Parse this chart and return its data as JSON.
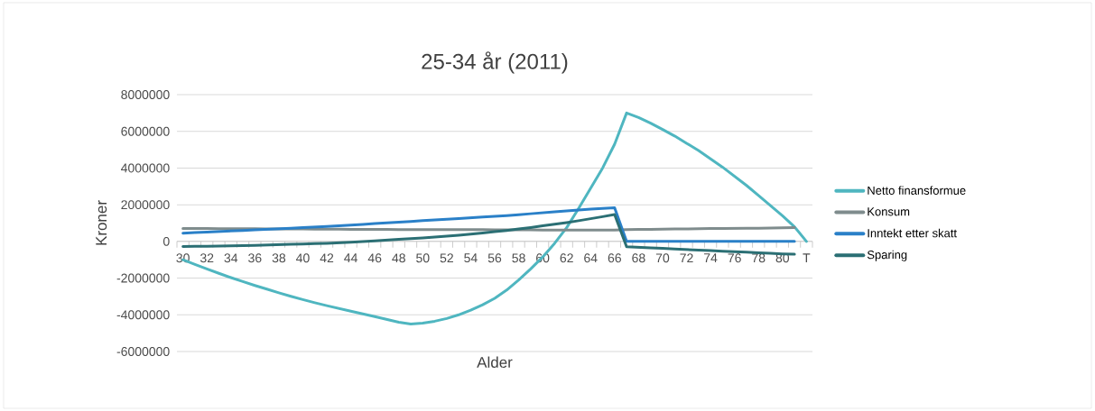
{
  "chart_data": {
    "type": "line",
    "title": "25-34 år (2011)",
    "xlabel": "Alder",
    "ylabel": "Kroner",
    "categories": [
      "30",
      null,
      "32",
      null,
      "34",
      null,
      "36",
      null,
      "38",
      null,
      "40",
      null,
      "42",
      null,
      "44",
      null,
      "46",
      null,
      "48",
      null,
      "50",
      null,
      "52",
      null,
      "54",
      null,
      "56",
      null,
      "58",
      null,
      "60",
      null,
      "62",
      null,
      "64",
      null,
      "66",
      null,
      "68",
      null,
      "70",
      null,
      "72",
      null,
      "74",
      null,
      "76",
      null,
      "78",
      null,
      "80",
      null,
      "T"
    ],
    "series": [
      {
        "name": "Netto finansformue",
        "color": "#4fb6c0",
        "values": [
          -1000000,
          -1250000,
          -1500000,
          -1740000,
          -1970000,
          -2190000,
          -2400000,
          -2600000,
          -2800000,
          -2990000,
          -3170000,
          -3340000,
          -3500000,
          -3650000,
          -3800000,
          -3950000,
          -4100000,
          -4250000,
          -4400000,
          -4500000,
          -4450000,
          -4350000,
          -4200000,
          -4000000,
          -3750000,
          -3450000,
          -3100000,
          -2650000,
          -2100000,
          -1500000,
          -850000,
          -100000,
          750000,
          1800000,
          2900000,
          4000000,
          5300000,
          7000000,
          6750000,
          6450000,
          6100000,
          5750000,
          5350000,
          4950000,
          4500000,
          4050000,
          3550000,
          3050000,
          2500000,
          1950000,
          1400000,
          800000,
          0
        ]
      },
      {
        "name": "Konsum",
        "color": "#7f8c8d",
        "values": [
          700000,
          700000,
          700000,
          690000,
          690000,
          690000,
          690000,
          680000,
          680000,
          680000,
          680000,
          670000,
          670000,
          670000,
          660000,
          660000,
          660000,
          660000,
          650000,
          650000,
          650000,
          650000,
          640000,
          640000,
          640000,
          640000,
          630000,
          630000,
          630000,
          630000,
          620000,
          620000,
          620000,
          620000,
          620000,
          620000,
          620000,
          650000,
          660000,
          660000,
          670000,
          680000,
          680000,
          690000,
          700000,
          700000,
          710000,
          720000,
          720000,
          730000,
          740000,
          750000,
          null
        ]
      },
      {
        "name": "Inntekt etter skatt",
        "color": "#2a80c8",
        "values": [
          450000,
          480000,
          510000,
          540000,
          570000,
          600000,
          630000,
          660000,
          690000,
          720000,
          750000,
          780000,
          810000,
          850000,
          890000,
          930000,
          970000,
          1010000,
          1050000,
          1090000,
          1130000,
          1170000,
          1210000,
          1250000,
          1290000,
          1330000,
          1370000,
          1410000,
          1460000,
          1510000,
          1560000,
          1610000,
          1660000,
          1710000,
          1760000,
          1800000,
          1830000,
          0,
          0,
          0,
          0,
          0,
          0,
          0,
          0,
          0,
          0,
          0,
          0,
          0,
          0,
          0,
          null
        ]
      },
      {
        "name": "Sparing",
        "color": "#2b6f74",
        "values": [
          -280000,
          -270000,
          -260000,
          -250000,
          -240000,
          -230000,
          -220000,
          -200000,
          -180000,
          -160000,
          -140000,
          -120000,
          -100000,
          -70000,
          -40000,
          -10000,
          30000,
          70000,
          110000,
          150000,
          190000,
          240000,
          290000,
          340000,
          400000,
          460000,
          530000,
          600000,
          680000,
          760000,
          850000,
          940000,
          1030000,
          1130000,
          1240000,
          1350000,
          1470000,
          -290000,
          -320000,
          -350000,
          -380000,
          -410000,
          -440000,
          -470000,
          -500000,
          -530000,
          -560000,
          -590000,
          -620000,
          -650000,
          -680000,
          -700000,
          null
        ]
      }
    ],
    "ylim": [
      -6000000,
      8000000
    ],
    "yticks": [
      -6000000,
      -4000000,
      -2000000,
      0,
      2000000,
      4000000,
      6000000,
      8000000
    ],
    "grid": "y",
    "legend": "right",
    "line_style": "solid",
    "marker": "none"
  }
}
